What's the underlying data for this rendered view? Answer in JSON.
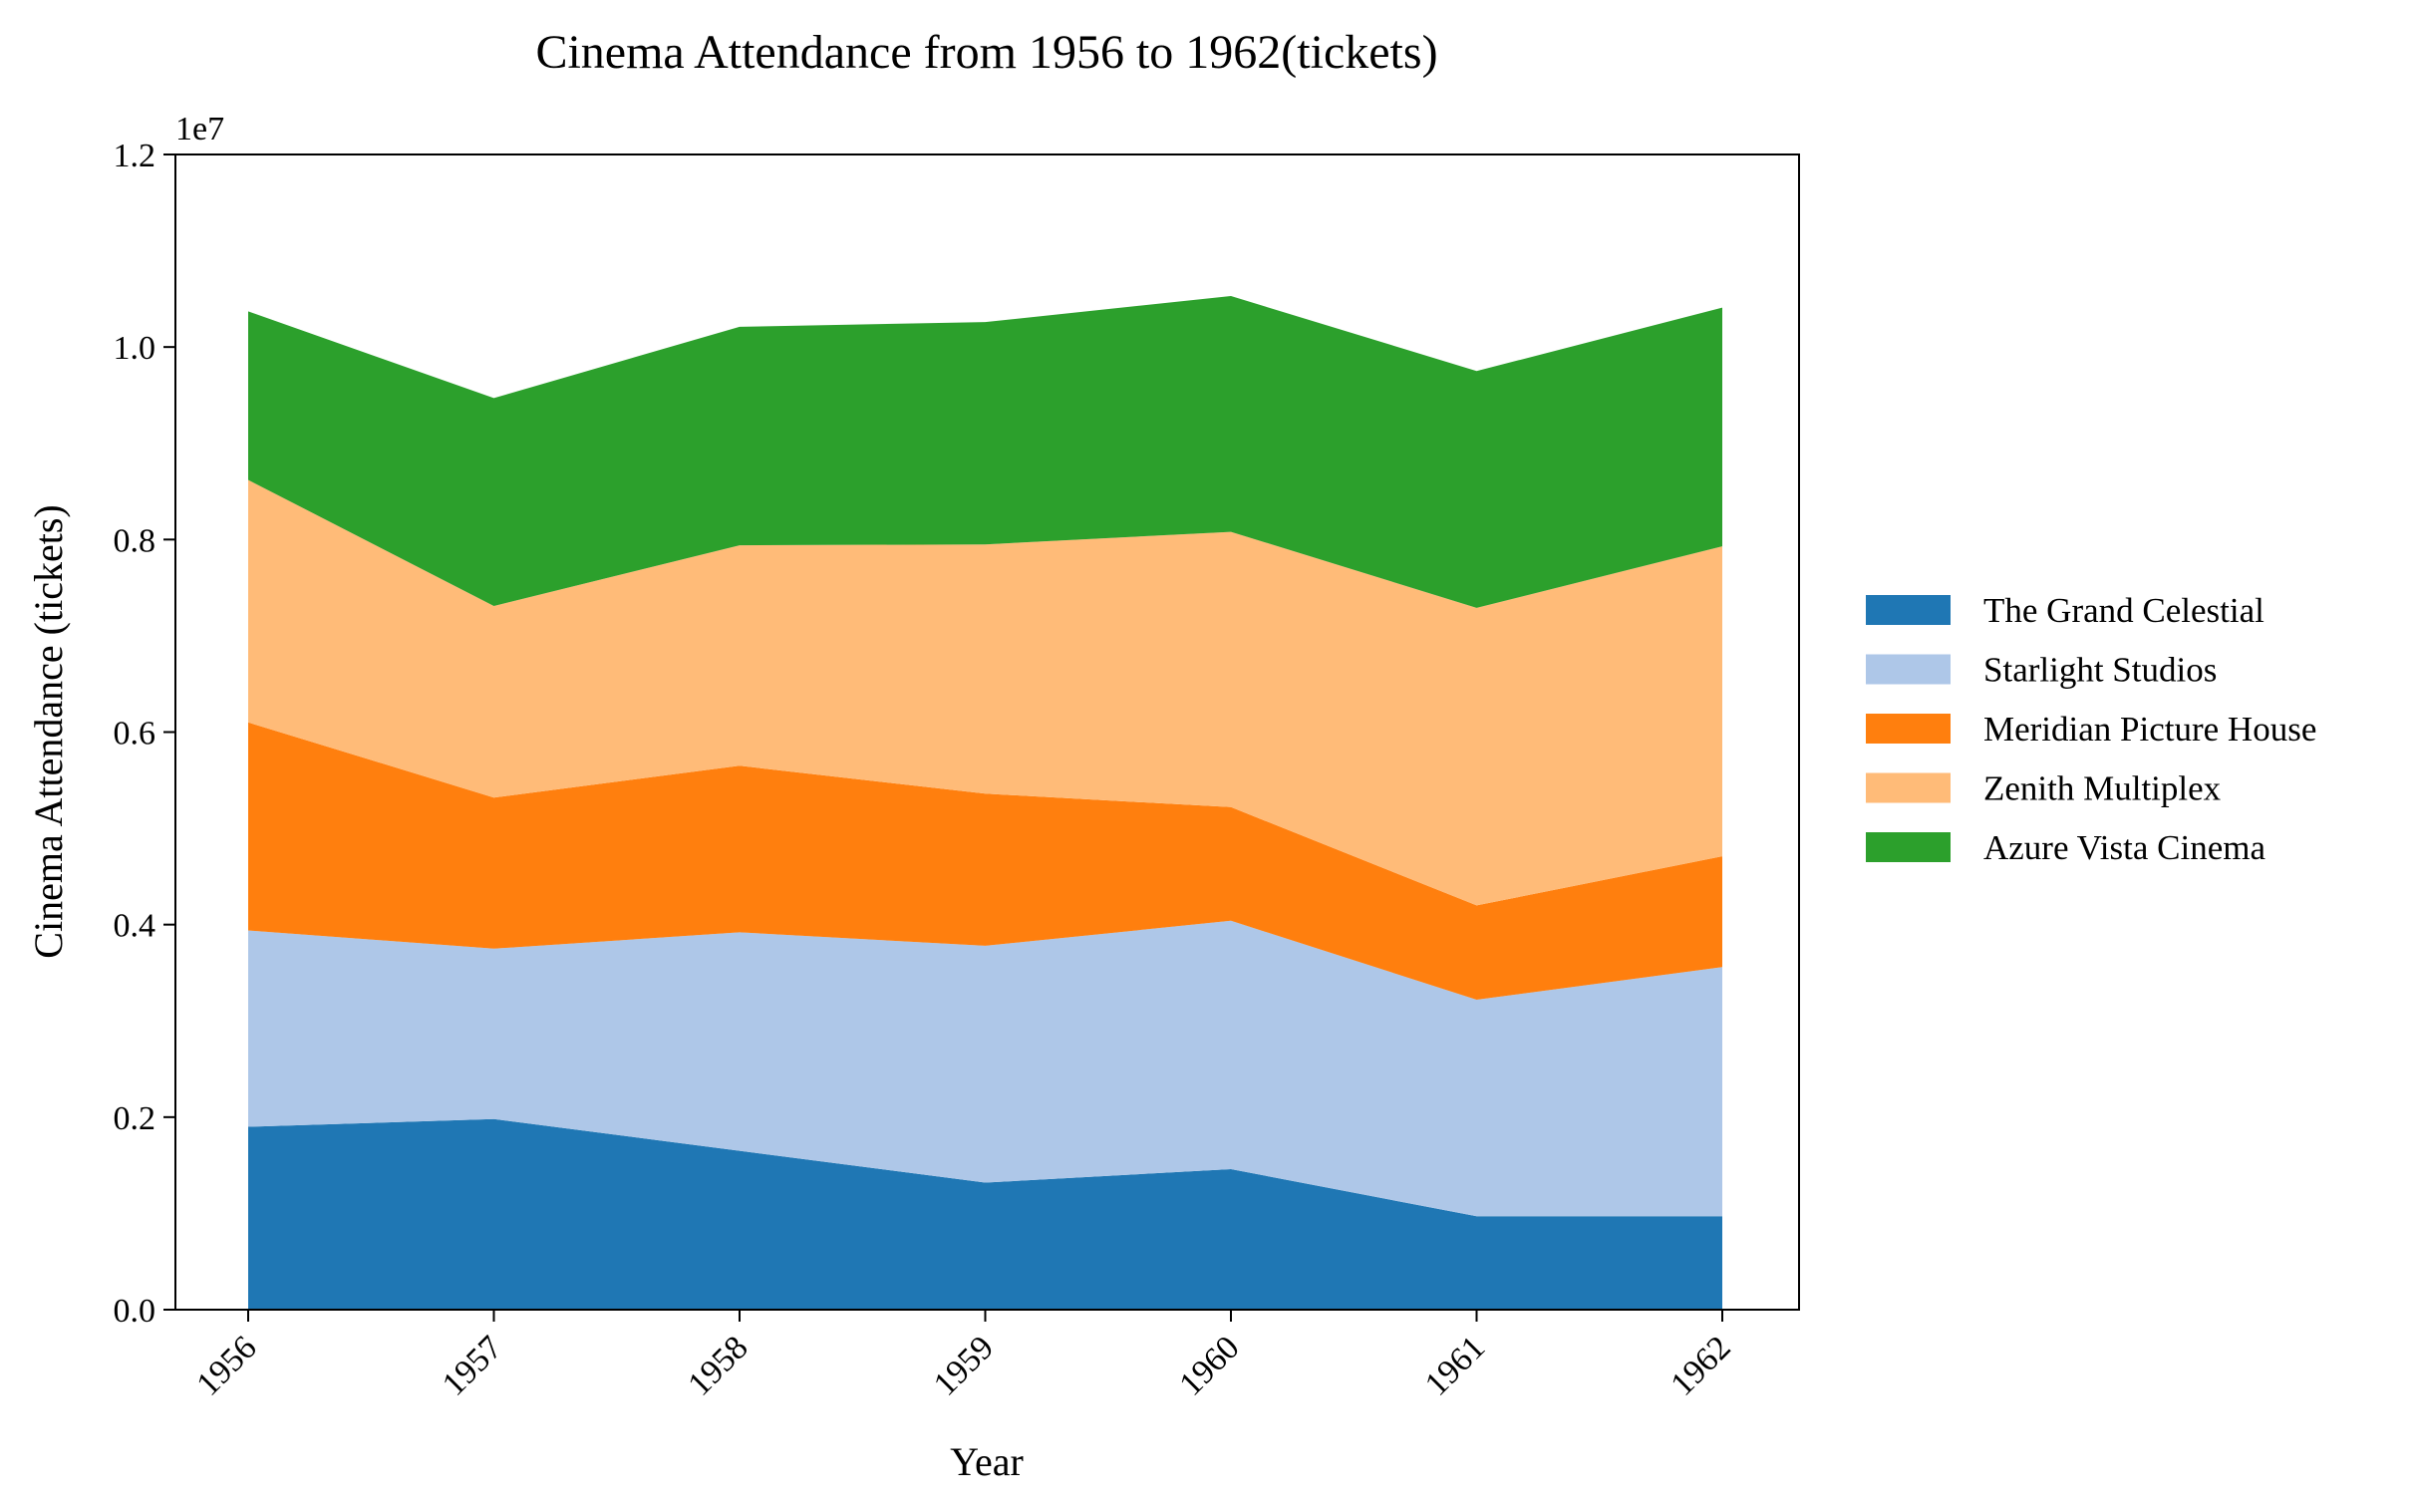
{
  "chart_data": {
    "type": "area",
    "stacked": true,
    "title": "Cinema Attendance from 1956 to 1962(tickets)",
    "xlabel": "Year",
    "ylabel": "Cinema Attendance (tickets)",
    "y_offset_label": "1e7",
    "categories": [
      "1956",
      "1957",
      "1958",
      "1959",
      "1960",
      "1961",
      "1962"
    ],
    "ylim": [
      0,
      12000000
    ],
    "yticks": [
      0,
      2000000,
      4000000,
      6000000,
      8000000,
      10000000,
      12000000
    ],
    "ytick_labels": [
      "0.0",
      "0.2",
      "0.4",
      "0.6",
      "0.8",
      "1.0",
      "1.2"
    ],
    "grid": false,
    "legend_position": "right",
    "series": [
      {
        "name": "The Grand Celestial",
        "color": "#1f77b4",
        "values": [
          1900000,
          1980000,
          1650000,
          1320000,
          1460000,
          970000,
          970000
        ]
      },
      {
        "name": "Starlight Studios",
        "color": "#aec7e8",
        "values": [
          2040000,
          1770000,
          2270000,
          2460000,
          2580000,
          2250000,
          2590000
        ]
      },
      {
        "name": "Meridian Picture House",
        "color": "#ff7f0e",
        "values": [
          2160000,
          1570000,
          1730000,
          1580000,
          1180000,
          980000,
          1150000
        ]
      },
      {
        "name": "Zenith Multiplex",
        "color": "#ffbb78",
        "values": [
          2520000,
          1990000,
          2290000,
          2590000,
          2860000,
          3090000,
          3220000
        ]
      },
      {
        "name": "Azure Vista Cinema",
        "color": "#2ca02c",
        "values": [
          1750000,
          2160000,
          2270000,
          2310000,
          2450000,
          2460000,
          2480000
        ]
      }
    ]
  }
}
